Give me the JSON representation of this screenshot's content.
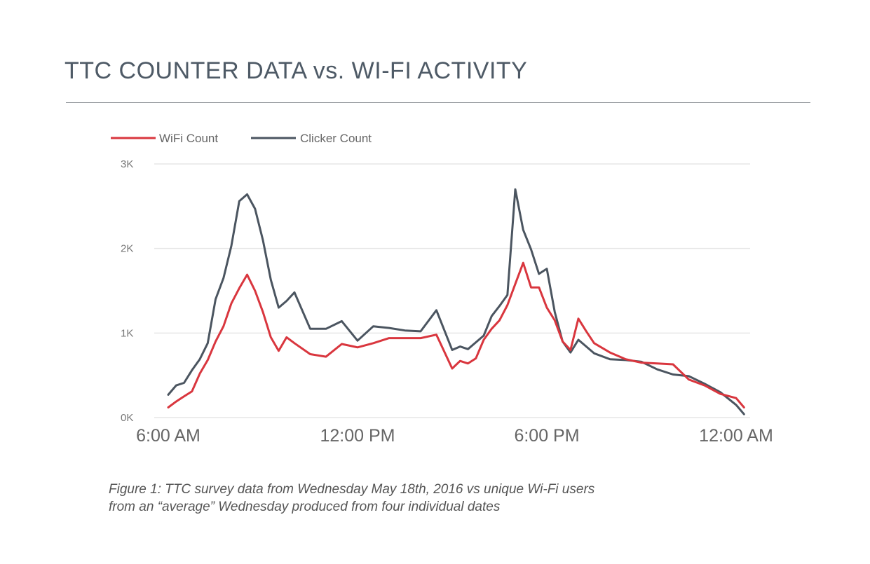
{
  "page": {
    "title": "TTC COUNTER DATA vs. WI-FI ACTIVITY",
    "caption_lines": [
      "Figure 1: TTC survey data from Wednesday May 18th, 2016 vs unique Wi-Fi users",
      "from an “average” Wednesday produced from four individual dates"
    ]
  },
  "chart_data": {
    "type": "line",
    "x_unit": "hour of day (6 = 6:00 AM, 24 = 12:00 AM)",
    "x_ticks": [
      {
        "value": 6,
        "label": "6:00 AM"
      },
      {
        "value": 12,
        "label": "12:00 PM"
      },
      {
        "value": 18,
        "label": "6:00 PM"
      },
      {
        "value": 24,
        "label": "12:00 AM"
      }
    ],
    "y_ticks": [
      {
        "value": 0,
        "label": "0K"
      },
      {
        "value": 1000,
        "label": "1K"
      },
      {
        "value": 2000,
        "label": "2K"
      },
      {
        "value": 3000,
        "label": "3K"
      }
    ],
    "xlim": [
      6,
      24
    ],
    "ylim": [
      0,
      3000
    ],
    "grid": true,
    "legend_position": "top-left",
    "series": [
      {
        "name": "WiFi Count",
        "color": "#d9363e",
        "x": [
          6,
          6.25,
          6.5,
          6.75,
          7,
          7.25,
          7.5,
          7.75,
          8,
          8.25,
          8.5,
          8.75,
          9,
          9.25,
          9.5,
          9.75,
          10,
          10.5,
          11,
          11.5,
          12,
          12.5,
          13,
          13.5,
          14,
          14.5,
          15,
          15.25,
          15.5,
          15.75,
          16,
          16.25,
          16.5,
          16.75,
          17,
          17.25,
          17.5,
          17.75,
          18,
          18.25,
          18.5,
          18.75,
          19,
          19.25,
          19.5,
          20,
          20.5,
          21,
          21.5,
          22,
          22.5,
          23,
          23.5,
          24,
          24.25
        ],
        "y": [
          120,
          190,
          250,
          310,
          520,
          680,
          900,
          1080,
          1350,
          1530,
          1690,
          1500,
          1250,
          950,
          790,
          950,
          880,
          750,
          720,
          870,
          830,
          880,
          940,
          940,
          940,
          980,
          580,
          670,
          640,
          700,
          920,
          1050,
          1150,
          1330,
          1580,
          1830,
          1540,
          1540,
          1300,
          1150,
          900,
          800,
          1170,
          1020,
          880,
          770,
          690,
          650,
          640,
          630,
          450,
          380,
          280,
          230,
          120
        ]
      },
      {
        "name": "Clicker Count",
        "color": "#4b5560",
        "x": [
          6,
          6.25,
          6.5,
          6.75,
          7,
          7.25,
          7.5,
          7.75,
          8,
          8.25,
          8.5,
          8.75,
          9,
          9.25,
          9.5,
          9.75,
          10,
          10.5,
          11,
          11.5,
          12,
          12.5,
          13,
          13.5,
          14,
          14.5,
          15,
          15.25,
          15.5,
          15.75,
          16,
          16.25,
          16.5,
          16.75,
          17,
          17.25,
          17.5,
          17.75,
          18,
          18.25,
          18.5,
          18.75,
          19,
          19.25,
          19.5,
          20,
          20.5,
          21,
          21.5,
          22,
          22.5,
          23,
          23.5,
          24,
          24.25
        ],
        "y": [
          270,
          380,
          410,
          560,
          690,
          880,
          1400,
          1650,
          2030,
          2560,
          2640,
          2470,
          2100,
          1630,
          1300,
          1380,
          1480,
          1050,
          1050,
          1140,
          910,
          1080,
          1060,
          1030,
          1020,
          1270,
          800,
          840,
          810,
          890,
          970,
          1200,
          1320,
          1450,
          2700,
          2220,
          1990,
          1700,
          1760,
          1250,
          900,
          770,
          920,
          840,
          760,
          690,
          680,
          660,
          570,
          510,
          490,
          400,
          300,
          150,
          40
        ]
      }
    ]
  }
}
